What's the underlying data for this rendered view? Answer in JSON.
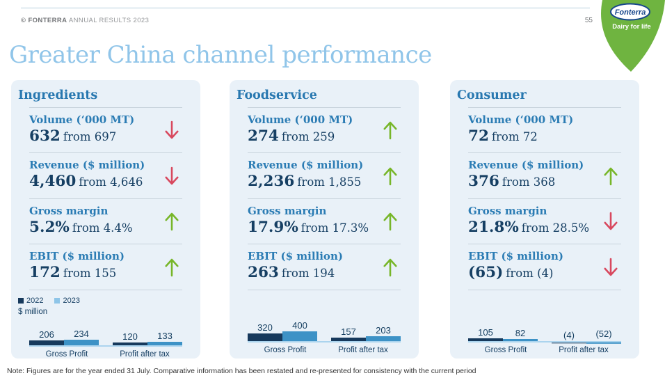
{
  "header": {
    "copyright_bold": "© FONTERRA",
    "copyright_rest": " ANNUAL RESULTS 2023",
    "page_number": "55"
  },
  "logo": {
    "brand": "Fonterra",
    "tagline": "Dairy for life",
    "green": "#6fb440",
    "text_blue": "#17468b"
  },
  "title": "Greater China channel performance",
  "legend": {
    "items": [
      {
        "label": "2022",
        "color": "#16395c"
      },
      {
        "label": "2023",
        "color": "#8ec5e8"
      }
    ],
    "unit": "$ million"
  },
  "colors": {
    "panel_bg": "#e9f1f8",
    "label_blue": "#2b7cb4",
    "value_navy": "#163f63",
    "title_light_blue": "#90c5e9",
    "up_green": "#77b629",
    "down_red": "#d8485e",
    "bar_2022": "#16395c",
    "bar_2023": "#3d92c6",
    "baseline": "#abd4ee"
  },
  "panels": [
    {
      "title": "Ingredients",
      "metrics": [
        {
          "label": "Volume (‘000 MT)",
          "value": "632",
          "from": "from 697",
          "trend": "down"
        },
        {
          "label": "Revenue ($ million)",
          "value": "4,460",
          "from": "from 4,646",
          "trend": "down"
        },
        {
          "label": "Gross margin",
          "value": "5.2%",
          "from": "from 4.4%",
          "trend": "up"
        },
        {
          "label": "EBIT ($ million)",
          "value": "172",
          "from": "from 155",
          "trend": "up"
        }
      ],
      "chart": {
        "groups": [
          {
            "category": "Gross Profit",
            "values": [
              206,
              234
            ],
            "labels": [
              "206",
              "234"
            ]
          },
          {
            "category": "Profit after tax",
            "values": [
              120,
              133
            ],
            "labels": [
              "120",
              "133"
            ]
          }
        ]
      }
    },
    {
      "title": "Foodservice",
      "metrics": [
        {
          "label": "Volume (‘000 MT)",
          "value": "274",
          "from": "from 259",
          "trend": "up"
        },
        {
          "label": "Revenue ($ million)",
          "value": "2,236",
          "from": "from 1,855",
          "trend": "up"
        },
        {
          "label": "Gross margin",
          "value": "17.9%",
          "from": "from 17.3%",
          "trend": "up"
        },
        {
          "label": "EBIT ($ million)",
          "value": "263",
          "from": "from 194",
          "trend": "up"
        }
      ],
      "chart": {
        "groups": [
          {
            "category": "Gross Profit",
            "values": [
              320,
              400
            ],
            "labels": [
              "320",
              "400"
            ]
          },
          {
            "category": "Profit after tax",
            "values": [
              157,
              203
            ],
            "labels": [
              "157",
              "203"
            ]
          }
        ]
      }
    },
    {
      "title": "Consumer",
      "metrics": [
        {
          "label": "Volume (‘000 MT)",
          "value": "72",
          "from": "from 72",
          "trend": "none"
        },
        {
          "label": "Revenue ($ million)",
          "value": "376",
          "from": "from 368",
          "trend": "up"
        },
        {
          "label": "Gross margin",
          "value": "21.8%",
          "from": "from 28.5%",
          "trend": "down"
        },
        {
          "label": "EBIT ($ million)",
          "value": "(65)",
          "from": "from (4)",
          "trend": "down"
        }
      ],
      "chart": {
        "groups": [
          {
            "category": "Gross Profit",
            "values": [
              105,
              82
            ],
            "labels": [
              "105",
              "82"
            ]
          },
          {
            "category": "Profit after tax",
            "values": [
              -4,
              -52
            ],
            "labels": [
              "(4)",
              "(52)"
            ]
          }
        ]
      }
    }
  ],
  "chart_data": [
    {
      "type": "bar",
      "title": "Ingredients ($ million)",
      "categories": [
        "Gross Profit",
        "Profit after tax"
      ],
      "series": [
        {
          "name": "2022",
          "values": [
            206,
            120
          ]
        },
        {
          "name": "2023",
          "values": [
            234,
            133
          ]
        }
      ],
      "ylabel": "$ million",
      "grid": false,
      "legend_position": "top-left"
    },
    {
      "type": "bar",
      "title": "Foodservice ($ million)",
      "categories": [
        "Gross Profit",
        "Profit after tax"
      ],
      "series": [
        {
          "name": "2022",
          "values": [
            320,
            157
          ]
        },
        {
          "name": "2023",
          "values": [
            400,
            203
          ]
        }
      ],
      "ylabel": "$ million",
      "grid": false
    },
    {
      "type": "bar",
      "title": "Consumer ($ million)",
      "categories": [
        "Gross Profit",
        "Profit after tax"
      ],
      "series": [
        {
          "name": "2022",
          "values": [
            105,
            -4
          ]
        },
        {
          "name": "2023",
          "values": [
            82,
            -52
          ]
        }
      ],
      "ylabel": "$ million",
      "grid": false
    }
  ],
  "note": "Note: Figures are for the year ended 31 July. Comparative information has been restated and re-presented for consistency with the current period"
}
